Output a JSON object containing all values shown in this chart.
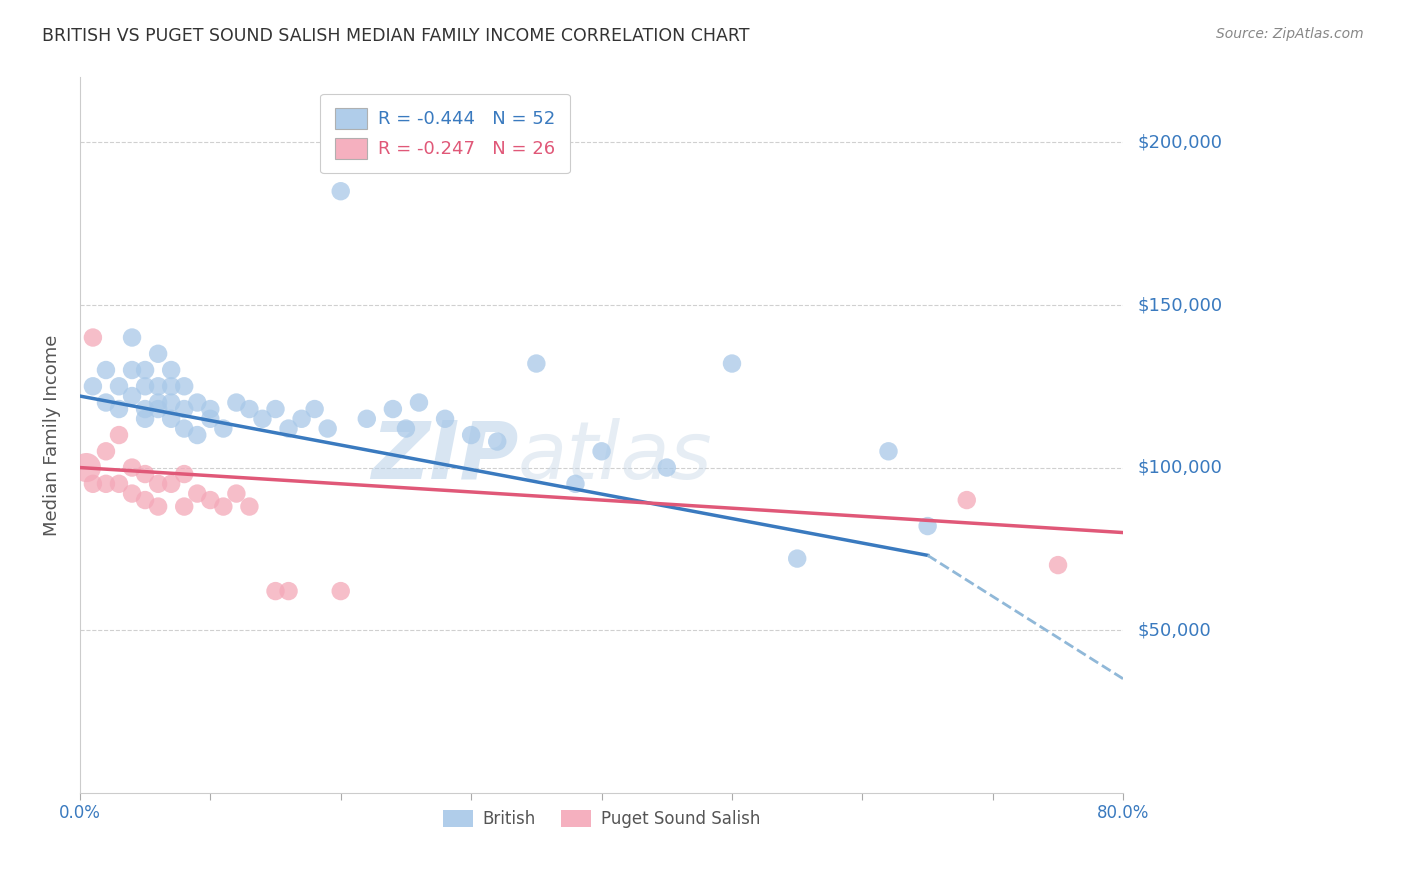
{
  "title": "BRITISH VS PUGET SOUND SALISH MEDIAN FAMILY INCOME CORRELATION CHART",
  "source": "Source: ZipAtlas.com",
  "ylabel": "Median Family Income",
  "watermark": "ZIPatlas",
  "legend_british_R": "R = -0.444",
  "legend_british_N": "N = 52",
  "legend_puget_R": "R = -0.247",
  "legend_puget_N": "N = 26",
  "legend_british_label": "British",
  "legend_puget_label": "Puget Sound Salish",
  "blue_color": "#a8c8e8",
  "pink_color": "#f4a8b8",
  "blue_line_color": "#3a7abf",
  "pink_line_color": "#e05878",
  "dashed_line_color": "#90b8d8",
  "title_color": "#333333",
  "ytick_color": "#3a7abf",
  "xtick_color": "#3a7abf",
  "grid_color": "#d0d0d0",
  "background_color": "#ffffff",
  "british_x": [
    1,
    2,
    2,
    3,
    3,
    4,
    4,
    4,
    5,
    5,
    5,
    5,
    6,
    6,
    6,
    6,
    7,
    7,
    7,
    7,
    8,
    8,
    8,
    9,
    9,
    10,
    10,
    11,
    12,
    13,
    14,
    15,
    16,
    17,
    18,
    19,
    20,
    22,
    24,
    25,
    26,
    28,
    30,
    32,
    35,
    38,
    40,
    45,
    50,
    55,
    62,
    65
  ],
  "british_y": [
    125000,
    120000,
    130000,
    118000,
    125000,
    122000,
    130000,
    140000,
    115000,
    118000,
    125000,
    130000,
    118000,
    120000,
    125000,
    135000,
    115000,
    120000,
    125000,
    130000,
    112000,
    118000,
    125000,
    110000,
    120000,
    115000,
    118000,
    112000,
    120000,
    118000,
    115000,
    118000,
    112000,
    115000,
    118000,
    112000,
    185000,
    115000,
    118000,
    112000,
    120000,
    115000,
    110000,
    108000,
    132000,
    95000,
    105000,
    100000,
    132000,
    72000,
    105000,
    82000
  ],
  "british_sizes": [
    80,
    80,
    80,
    80,
    80,
    80,
    80,
    80,
    80,
    80,
    80,
    80,
    80,
    80,
    80,
    80,
    80,
    80,
    80,
    80,
    80,
    80,
    80,
    80,
    80,
    80,
    80,
    80,
    80,
    80,
    80,
    80,
    80,
    80,
    80,
    80,
    80,
    80,
    80,
    80,
    80,
    80,
    80,
    80,
    80,
    80,
    80,
    80,
    80,
    80,
    80,
    80
  ],
  "puget_x": [
    0.5,
    1,
    1,
    2,
    2,
    3,
    3,
    4,
    4,
    5,
    5,
    6,
    6,
    7,
    8,
    8,
    9,
    10,
    11,
    12,
    13,
    15,
    16,
    20,
    68,
    75
  ],
  "puget_y": [
    100000,
    95000,
    140000,
    95000,
    105000,
    95000,
    110000,
    92000,
    100000,
    90000,
    98000,
    88000,
    95000,
    95000,
    88000,
    98000,
    92000,
    90000,
    88000,
    92000,
    88000,
    62000,
    62000,
    62000,
    90000,
    70000
  ],
  "puget_sizes": [
    200,
    80,
    80,
    80,
    80,
    80,
    80,
    80,
    80,
    80,
    80,
    80,
    80,
    80,
    80,
    80,
    80,
    80,
    80,
    80,
    80,
    80,
    80,
    80,
    80,
    80
  ],
  "xlim": [
    0,
    80
  ],
  "ylim": [
    0,
    220000
  ],
  "ytick_values": [
    50000,
    100000,
    150000,
    200000
  ],
  "ytick_labels": [
    "$50,000",
    "$100,000",
    "$150,000",
    "$200,000"
  ],
  "blue_line_x0": 0,
  "blue_line_y0": 122000,
  "blue_line_x1": 65,
  "blue_line_y1": 73000,
  "blue_dash_x0": 65,
  "blue_dash_y0": 73000,
  "blue_dash_x1": 80,
  "blue_dash_y1": 35000,
  "pink_line_x0": 0,
  "pink_line_y0": 100000,
  "pink_line_x1": 80,
  "pink_line_y1": 80000
}
